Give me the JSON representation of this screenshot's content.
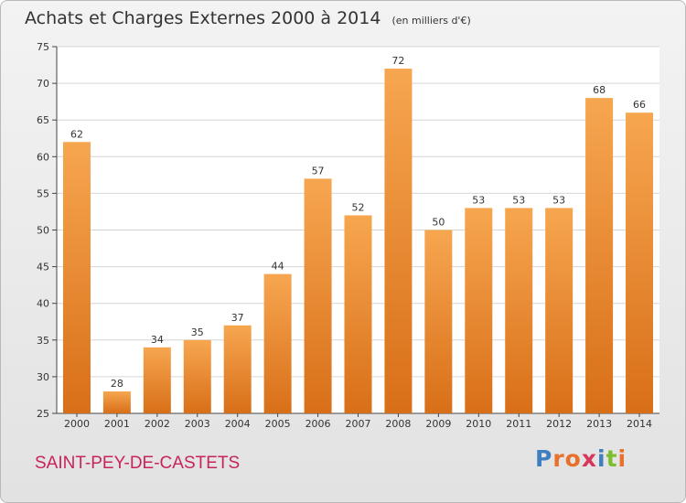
{
  "header": {
    "title": "Achats et Charges Externes 2000 à 2014",
    "unit": "(en milliers d'€)"
  },
  "commune": "SAINT-PEY-DE-CASTETS",
  "logo": {
    "text": "Proxiti",
    "letter_colors": [
      "#3f7fbf",
      "#e8702a",
      "#e8702a",
      "#d8365a",
      "#3f7fbf",
      "#7bbf2f",
      "#e8702a"
    ]
  },
  "colors": {
    "bar_light": "#f7a650",
    "bar_dark": "#d86f18",
    "label": "#333333"
  },
  "chart_data": {
    "type": "bar",
    "title": "Achats et Charges Externes 2000 à 2014",
    "subtitle": "(en milliers d'€)",
    "categories": [
      "2000",
      "2001",
      "2002",
      "2003",
      "2004",
      "2005",
      "2006",
      "2007",
      "2008",
      "2009",
      "2010",
      "2011",
      "2012",
      "2013",
      "2014"
    ],
    "values": [
      62,
      28,
      34,
      35,
      37,
      44,
      57,
      52,
      72,
      50,
      53,
      53,
      53,
      68,
      66
    ],
    "ylim": [
      25,
      75
    ],
    "yticks": [
      25,
      30,
      35,
      40,
      45,
      50,
      55,
      60,
      65,
      70,
      75
    ],
    "grid": true,
    "xlabel": "",
    "ylabel": ""
  }
}
